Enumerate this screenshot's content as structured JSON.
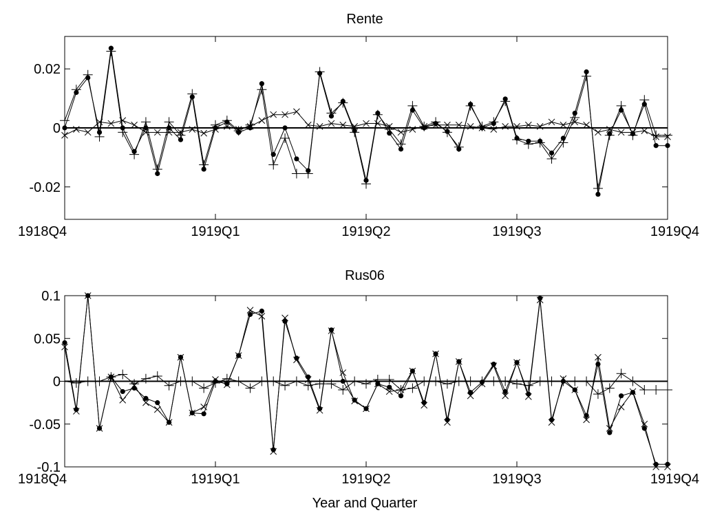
{
  "figure": {
    "xlabel": "Year and Quarter"
  },
  "chart_data": [
    {
      "type": "line",
      "title": "Rente",
      "xlabel": "",
      "ylabel": "",
      "n": 53,
      "xlim": [
        0,
        52
      ],
      "ylim": [
        -0.031,
        0.031
      ],
      "grid": false,
      "x_tick_labels": [
        {
          "i": 0,
          "label": "1918Q4"
        },
        {
          "i": 13,
          "label": "1919Q1"
        },
        {
          "i": 26,
          "label": "1919Q2"
        },
        {
          "i": 39,
          "label": "1919Q3"
        },
        {
          "i": 52,
          "label": "1919Q4"
        }
      ],
      "y_ticks": [
        {
          "v": 0.02,
          "label": "0.02"
        },
        {
          "v": 0,
          "label": "0"
        },
        {
          "v": -0.02,
          "label": "-0.02"
        }
      ],
      "zero_line": true,
      "series": [
        {
          "marker": "dot",
          "values": [
            0,
            0.012,
            0.017,
            -0.0015,
            0.027,
            0,
            -0.008,
            0,
            -0.0155,
            0,
            -0.004,
            0.0105,
            -0.014,
            0,
            0.002,
            -0.0015,
            0,
            0.015,
            -0.009,
            0,
            -0.0105,
            -0.0145,
            0.0185,
            0.004,
            0.009,
            -0.001,
            -0.0178,
            0.005,
            -0.0018,
            -0.0072,
            0.006,
            0,
            0.0015,
            -0.0012,
            -0.0072,
            0.008,
            0,
            0.0015,
            0.0098,
            -0.0035,
            -0.0045,
            -0.0045,
            -0.0085,
            -0.0035,
            0.005,
            0.019,
            -0.0225,
            -0.002,
            0.006,
            -0.002,
            0.008,
            -0.006,
            -0.006
          ]
        },
        {
          "marker": "plus",
          "values": [
            0.0025,
            0.013,
            0.018,
            -0.003,
            0.026,
            -0.0015,
            -0.009,
            0.002,
            -0.014,
            0.002,
            -0.0025,
            0.0115,
            -0.0125,
            0.001,
            0.0025,
            -0.001,
            0.001,
            0.013,
            -0.0125,
            -0.0035,
            -0.0155,
            -0.0155,
            0.019,
            0.005,
            0.0085,
            -0.0015,
            -0.019,
            0.0045,
            -0.0005,
            -0.0055,
            0.0075,
            0.0005,
            0.002,
            -0.0015,
            -0.0065,
            0.0075,
            0.0005,
            0.002,
            0.009,
            -0.004,
            -0.0055,
            -0.005,
            -0.0105,
            -0.005,
            0.0035,
            0.0175,
            -0.0205,
            -0.0025,
            0.0075,
            -0.0025,
            0.0095,
            -0.0025,
            -0.0025
          ]
        },
        {
          "marker": "x",
          "values": [
            -0.0025,
            -0.0005,
            -0.0015,
            0.002,
            0.0015,
            0.0025,
            0.001,
            -0.0015,
            -0.0015,
            -0.0015,
            -0.0015,
            -0.0005,
            -0.0018,
            -0.0005,
            0.0005,
            -0.0005,
            0.0005,
            0.0025,
            0.0045,
            0.0045,
            0.0055,
            0.001,
            0.0005,
            0.0015,
            0.001,
            0.0005,
            0.0015,
            0.0015,
            0.0005,
            -0.0015,
            -0.0005,
            0.0005,
            0.001,
            0.001,
            0.001,
            0.0005,
            0,
            -0.0005,
            0.0005,
            0.0005,
            0.001,
            0.0005,
            0.002,
            0.001,
            0.002,
            0.001,
            -0.0015,
            -0.0005,
            -0.0015,
            -0.0015,
            -0.001,
            -0.003,
            -0.003
          ]
        }
      ]
    },
    {
      "type": "line",
      "title": "Rus06",
      "xlabel": "Year and Quarter",
      "ylabel": "",
      "n": 53,
      "xlim": [
        0,
        52
      ],
      "ylim": [
        -0.1,
        0.1
      ],
      "grid": false,
      "x_tick_labels": [
        {
          "i": 0,
          "label": "1918Q4"
        },
        {
          "i": 13,
          "label": "1919Q1"
        },
        {
          "i": 26,
          "label": "1919Q2"
        },
        {
          "i": 39,
          "label": "1919Q3"
        },
        {
          "i": 52,
          "label": "1919Q4"
        }
      ],
      "y_ticks": [
        {
          "v": 0.1,
          "label": "0.1"
        },
        {
          "v": 0.05,
          "label": "0.05"
        },
        {
          "v": 0,
          "label": "0"
        },
        {
          "v": -0.05,
          "label": "-0.05"
        },
        {
          "v": -0.1,
          "label": "-0.1"
        }
      ],
      "zero_line": true,
      "series": [
        {
          "marker": "dot",
          "values": [
            0.045,
            -0.033,
            0.1,
            -0.055,
            0.005,
            -0.012,
            -0.008,
            -0.02,
            -0.025,
            -0.048,
            0.028,
            -0.037,
            -0.038,
            0,
            -0.003,
            0.03,
            0.078,
            0.082,
            -0.08,
            0.07,
            0.027,
            0.005,
            -0.032,
            0.06,
            0,
            -0.022,
            -0.032,
            -0.003,
            -0.007,
            -0.017,
            0.012,
            -0.025,
            0.032,
            -0.045,
            0.023,
            -0.013,
            -0.001,
            0.02,
            -0.012,
            0.022,
            -0.015,
            0.097,
            -0.045,
            0.0,
            -0.01,
            -0.04,
            0.02,
            -0.06,
            -0.017,
            -0.013,
            -0.055,
            -0.097,
            -0.097
          ]
        },
        {
          "marker": "plus",
          "values": [
            0,
            -0.002,
            0,
            0,
            0.005,
            0.008,
            -0.003,
            0.003,
            0.006,
            -0.005,
            0,
            0,
            -0.008,
            -0.002,
            0.003,
            0,
            -0.008,
            0,
            0,
            -0.005,
            0,
            -0.005,
            -0.003,
            -0.003,
            -0.01,
            0,
            -0.003,
            0.002,
            0.002,
            -0.01,
            -0.008,
            0,
            0,
            -0.003,
            0,
            0,
            0,
            0,
            0,
            -0.003,
            -0.005,
            0,
            0,
            0,
            0,
            0,
            -0.015,
            -0.008,
            0.009,
            0,
            -0.01,
            -0.01,
            -0.01
          ]
        },
        {
          "marker": "x",
          "values": [
            0.04,
            -0.035,
            0.1,
            -0.055,
            0.005,
            -0.022,
            -0.005,
            -0.025,
            -0.033,
            -0.048,
            0.028,
            -0.037,
            -0.03,
            0.002,
            -0.004,
            0.03,
            0.083,
            0.076,
            -0.082,
            0.074,
            0.025,
            0.002,
            -0.034,
            0.059,
            0.01,
            -0.023,
            -0.032,
            -0.003,
            -0.012,
            -0.01,
            0.012,
            -0.028,
            0.032,
            -0.048,
            0.023,
            -0.017,
            -0.003,
            0.018,
            -0.017,
            0.022,
            -0.018,
            0.095,
            -0.048,
            0.003,
            -0.01,
            -0.045,
            0.028,
            -0.055,
            -0.03,
            -0.012,
            -0.05,
            -0.1,
            -0.1
          ]
        }
      ]
    }
  ]
}
